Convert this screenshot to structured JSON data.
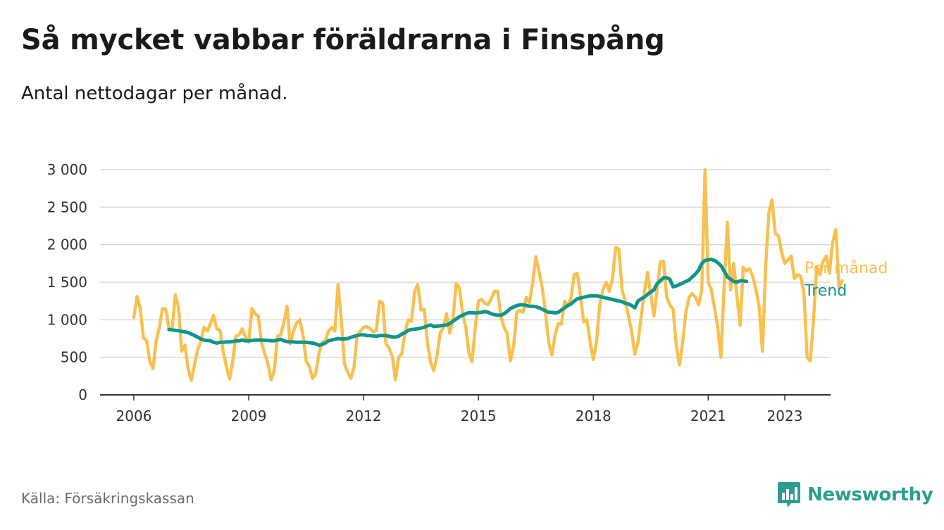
{
  "header": {
    "title": "Så mycket vabbar föräldrarna i Finspång",
    "subtitle": "Antal nettodagar per månad."
  },
  "footer": {
    "source": "Källa: Försäkringskassan",
    "brand": "Newsworthy",
    "brand_icon": "bar-chart-bubble-icon"
  },
  "colors": {
    "per_month": "#f9c04f",
    "trend": "#10958a",
    "gridline": "#d9d9d9",
    "axis": "#333333",
    "brand": "#2a9d8f"
  },
  "chart_data": {
    "type": "line",
    "title": "Så mycket vabbar föräldrarna i Finspång",
    "subtitle": "Antal nettodagar per månad.",
    "xlabel": "",
    "ylabel": "",
    "x_start": "2006-01",
    "x_end": "2023-05",
    "xlim": [
      2006.0,
      2023.35
    ],
    "ylim": [
      0,
      3000
    ],
    "y_ticks": [
      0,
      500,
      1000,
      1500,
      2000,
      2500,
      3000
    ],
    "y_tick_labels": [
      "0",
      "500",
      "1 000",
      "1 500",
      "2 000",
      "2 500",
      "3 000"
    ],
    "x_ticks": [
      2006,
      2009,
      2012,
      2015,
      2018,
      2021,
      2023
    ],
    "x_tick_labels": [
      "2006",
      "2009",
      "2012",
      "2015",
      "2018",
      "2021",
      "2023"
    ],
    "grid": "horizontal",
    "legend": "direct labels at line ends",
    "series": [
      {
        "name": "Per månad",
        "color": "#f9c04f",
        "interval": "monthly",
        "start": "2006-01",
        "values": [
          1030,
          1310,
          1150,
          760,
          720,
          450,
          350,
          720,
          900,
          1150,
          1140,
          880,
          890,
          1330,
          1170,
          580,
          660,
          350,
          190,
          400,
          600,
          710,
          900,
          850,
          950,
          1060,
          880,
          860,
          580,
          370,
          210,
          450,
          780,
          800,
          880,
          770,
          700,
          1150,
          1080,
          1050,
          700,
          550,
          420,
          200,
          320,
          780,
          800,
          960,
          1180,
          680,
          840,
          960,
          1000,
          800,
          450,
          380,
          220,
          290,
          550,
          700,
          720,
          850,
          900,
          850,
          1470,
          1000,
          420,
          300,
          220,
          370,
          800,
          850,
          900,
          910,
          880,
          840,
          860,
          1250,
          1220,
          680,
          620,
          510,
          200,
          500,
          550,
          840,
          1000,
          980,
          1380,
          1470,
          1130,
          1140,
          700,
          430,
          320,
          520,
          820,
          900,
          1080,
          820,
          1000,
          1480,
          1430,
          1100,
          900,
          560,
          440,
          900,
          1250,
          1270,
          1220,
          1200,
          1280,
          1380,
          1380,
          1050,
          900,
          820,
          450,
          640,
          1100,
          1120,
          1100,
          1300,
          1230,
          1500,
          1840,
          1640,
          1420,
          1100,
          700,
          530,
          800,
          950,
          940,
          1250,
          1180,
          1290,
          1600,
          1620,
          1300,
          970,
          1000,
          700,
          470,
          710,
          1200,
          1400,
          1500,
          1380,
          1550,
          1960,
          1940,
          1400,
          1250,
          1050,
          850,
          540,
          700,
          1050,
          1370,
          1630,
          1330,
          1050,
          1400,
          1770,
          1780,
          1300,
          1200,
          1140,
          650,
          400,
          710,
          1100,
          1300,
          1350,
          1300,
          1200,
          1400,
          3000,
          1500,
          1400,
          1150,
          900,
          500,
          1450,
          2300,
          1400,
          1750,
          1300,
          930,
          1700,
          1650,
          1680,
          1570,
          1400,
          1160,
          580,
          1700,
          2430,
          2600,
          2150,
          2120,
          1900,
          1750,
          1800,
          1850,
          1550,
          1600,
          1580,
          1350,
          500,
          450,
          1000,
          1700,
          1600,
          1780,
          1850,
          1620,
          2030,
          2200,
          1420,
          1520
        ]
      },
      {
        "name": "Trend",
        "color": "#10958a",
        "interval": "monthly",
        "start": "2006-12",
        "values": [
          870,
          865,
          860,
          855,
          845,
          840,
          830,
          810,
          790,
          770,
          745,
          730,
          725,
          720,
          700,
          690,
          700,
          700,
          705,
          705,
          710,
          720,
          720,
          730,
          720,
          720,
          725,
          730,
          730,
          730,
          728,
          725,
          722,
          720,
          730,
          740,
          720,
          710,
          705,
          705,
          700,
          700,
          700,
          700,
          695,
          690,
          680,
          660,
          670,
          690,
          720,
          730,
          740,
          750,
          745,
          745,
          750,
          765,
          780,
          790,
          800,
          800,
          790,
          790,
          785,
          780,
          790,
          790,
          790,
          780,
          770,
          770,
          780,
          810,
          830,
          860,
          870,
          875,
          880,
          890,
          900,
          920,
          930,
          910,
          915,
          920,
          925,
          930,
          950,
          980,
          1010,
          1040,
          1060,
          1080,
          1095,
          1095,
          1090,
          1095,
          1100,
          1110,
          1100,
          1080,
          1070,
          1060,
          1060,
          1080,
          1110,
          1150,
          1170,
          1190,
          1200,
          1200,
          1190,
          1180,
          1180,
          1175,
          1160,
          1140,
          1120,
          1100,
          1100,
          1090,
          1100,
          1130,
          1160,
          1190,
          1210,
          1250,
          1280,
          1290,
          1300,
          1310,
          1320,
          1320,
          1320,
          1310,
          1300,
          1290,
          1280,
          1270,
          1260,
          1250,
          1240,
          1220,
          1210,
          1190,
          1160,
          1250,
          1280,
          1300,
          1340,
          1370,
          1400,
          1480,
          1520,
          1560,
          1560,
          1540,
          1440,
          1450,
          1470,
          1490,
          1510,
          1530,
          1570,
          1610,
          1660,
          1750,
          1790,
          1800,
          1805,
          1790,
          1760,
          1720,
          1650,
          1570,
          1540,
          1510,
          1500,
          1520,
          1520,
          1510
        ]
      }
    ]
  }
}
